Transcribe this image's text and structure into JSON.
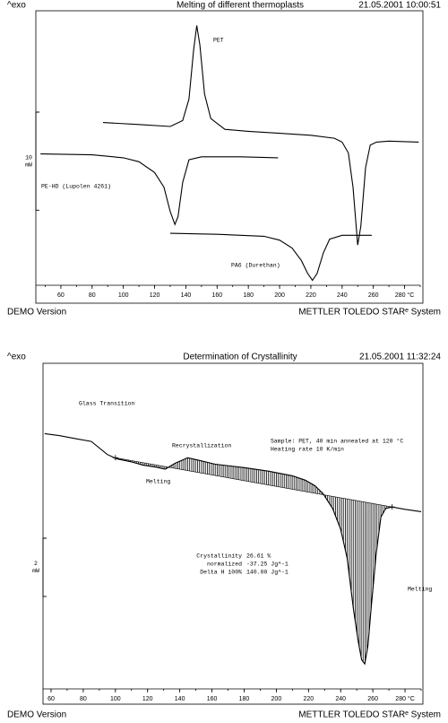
{
  "chart_data": [
    {
      "type": "line",
      "exo_label": "^exo",
      "title": "Melting of different thermoplasts",
      "timestamp": "21.05.2001 10:00:51",
      "xlim": [
        44,
        290
      ],
      "xticks": [
        60,
        80,
        100,
        120,
        140,
        160,
        180,
        200,
        220,
        240,
        260,
        {
          "value": 280,
          "label": "280 °C"
        }
      ],
      "ylim": [
        0,
        28
      ],
      "scale_bar": {
        "value": 10,
        "unit": "mW"
      },
      "series": [
        {
          "name": "PET",
          "color": "#000000",
          "x": [
            87,
            110,
            130,
            138,
            142,
            145,
            147,
            149,
            152,
            156,
            165,
            180,
            200,
            220,
            235,
            240,
            244,
            247,
            250,
            252,
            255,
            258,
            262,
            270,
            289
          ],
          "values": [
            16.6,
            16.4,
            16.2,
            16.8,
            19,
            24,
            26.5,
            24.5,
            19.5,
            17,
            15.9,
            15.7,
            15.5,
            15.3,
            15.0,
            14.6,
            13.5,
            10,
            4.1,
            6,
            12,
            14.3,
            14.6,
            14.7,
            14.6
          ]
        },
        {
          "name": "PE-HD (Lupolen 4261)",
          "color": "#000000",
          "x": [
            47,
            80,
            100,
            110,
            120,
            126,
            130,
            133,
            135,
            138,
            142,
            150,
            175,
            199
          ],
          "values": [
            13.4,
            13.3,
            13.0,
            12.6,
            11.5,
            10,
            7.5,
            6.2,
            7,
            10.5,
            12.8,
            13.1,
            13.1,
            13.0
          ]
        },
        {
          "name": "PA6 (Durethan)",
          "color": "#000000",
          "x": [
            130,
            160,
            190,
            200,
            208,
            214,
            218,
            221,
            224,
            228,
            232,
            240,
            259
          ],
          "values": [
            5.3,
            5.2,
            5.0,
            4.6,
            3.8,
            2.5,
            1.2,
            0.5,
            1.2,
            3.3,
            4.7,
            5.1,
            5.1
          ]
        }
      ],
      "footer_left": "DEMO Version",
      "footer_right": "METTLER TOLEDO STARᵉ System"
    },
    {
      "type": "line",
      "exo_label": "^exo",
      "title": "Determination of Crystallinity",
      "timestamp": "21.05.2001 11:32:24",
      "xlim": [
        55,
        290
      ],
      "xticks": [
        60,
        80,
        100,
        120,
        140,
        160,
        180,
        200,
        220,
        240,
        260,
        {
          "value": 280,
          "label": "280 °C"
        }
      ],
      "ylim": [
        0,
        11
      ],
      "scale_bar": {
        "value": 2,
        "unit": "mW"
      },
      "series": [
        {
          "color": "#000000",
          "x": [
            56,
            65,
            75,
            85,
            95,
            101,
            110,
            117,
            125,
            131,
            137,
            145,
            152,
            162,
            180,
            195,
            210,
            218,
            224,
            229,
            235,
            240,
            244,
            248,
            251,
            253,
            255,
            257,
            259,
            262,
            265,
            268,
            272,
            280,
            290
          ],
          "values": [
            8.77,
            8.7,
            8.6,
            8.5,
            8.05,
            7.9,
            7.8,
            7.69,
            7.62,
            7.55,
            7.75,
            7.94,
            7.85,
            7.72,
            7.6,
            7.48,
            7.32,
            7.17,
            6.98,
            6.71,
            6.2,
            5.48,
            4.5,
            2.71,
            1.6,
            1.0,
            0.86,
            1.5,
            2.8,
            4.6,
            5.9,
            6.2,
            6.25,
            6.17,
            6.09
          ]
        }
      ],
      "integration": {
        "x": [
          100,
          272
        ],
        "values": [
          7.94,
          6.25
        ]
      },
      "annotations": [
        "Glass Transition",
        "Recrystallization",
        "Melting",
        "Melting"
      ],
      "sample_info": [
        "Sample: PET, 40 min annealed at 120 °C",
        "Heating rate 10 K/min"
      ],
      "results": [
        [
          "Crystallinity",
          "26.61 %"
        ],
        [
          "normalized",
          "-37.25 Jg^-1"
        ],
        [
          "Delta H 100%",
          "140.00 Jg^-1"
        ]
      ],
      "footer_left": "DEMO Version",
      "footer_right": "METTLER TOLEDO STARᵉ System"
    }
  ]
}
